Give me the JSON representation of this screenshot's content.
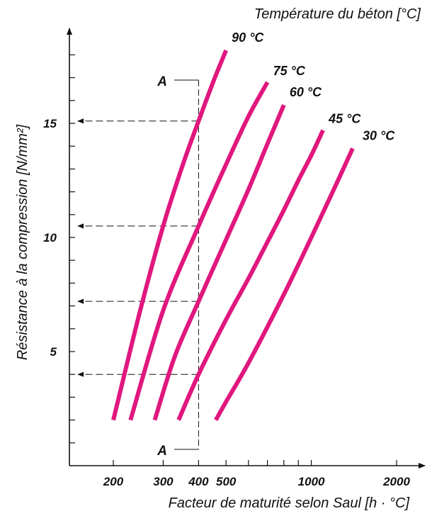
{
  "chart_data": {
    "type": "line",
    "title": "Température du béton [°C]",
    "xlabel": "Facteur de maturité selon Saul [h · °C]",
    "ylabel": "Résistance à la compression [N/mm²]",
    "x_scale": "log",
    "x_ticks": [
      200,
      300,
      400,
      500,
      1000,
      2000
    ],
    "x_tick_labels": [
      "200",
      "300",
      "400",
      "500",
      "1000",
      "2000"
    ],
    "xlim": [
      130,
      2200
    ],
    "y_ticks": [
      5,
      10,
      15
    ],
    "y_tick_labels": [
      "5",
      "10",
      "15"
    ],
    "ylim": [
      -0.5,
      19
    ],
    "grid": false,
    "series": [
      {
        "name": "90 °C",
        "color": "#e0177e",
        "x": [
          200,
          250,
          300,
          350,
          400,
          450,
          500
        ],
        "y": [
          2.0,
          6.9,
          10.5,
          13.1,
          15.1,
          16.8,
          18.2
        ]
      },
      {
        "name": "75 °C",
        "color": "#e0177e",
        "x": [
          230,
          300,
          400,
          500,
          600,
          700
        ],
        "y": [
          2.0,
          6.8,
          10.5,
          13.2,
          15.3,
          16.8
        ]
      },
      {
        "name": "60 °C",
        "color": "#e0177e",
        "x": [
          280,
          330,
          400,
          500,
          600,
          700,
          800
        ],
        "y": [
          2.0,
          4.8,
          7.2,
          9.9,
          12.1,
          14.1,
          15.8
        ]
      },
      {
        "name": "45 °C",
        "color": "#e0177e",
        "x": [
          340,
          400,
          500,
          600,
          700,
          800,
          900,
          1000,
          1100
        ],
        "y": [
          2.0,
          4.0,
          6.4,
          8.2,
          9.8,
          11.2,
          12.5,
          13.6,
          14.7
        ]
      },
      {
        "name": "30 °C",
        "color": "#e0177e",
        "x": [
          460,
          500,
          600,
          800,
          1000,
          1200,
          1400
        ],
        "y": [
          2.0,
          2.8,
          4.5,
          7.5,
          10.0,
          12.1,
          13.9
        ]
      }
    ],
    "annotations": {
      "line_label": "A",
      "line_x": 400,
      "readings": [
        15.1,
        10.5,
        7.2,
        4.0
      ]
    }
  }
}
